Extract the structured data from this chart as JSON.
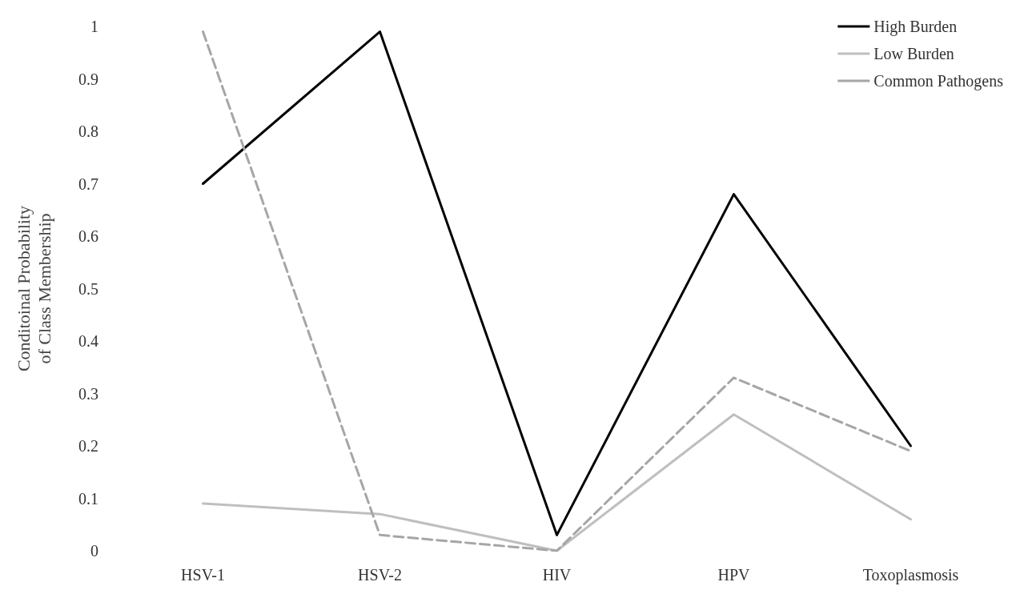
{
  "chart_data": {
    "type": "line",
    "ylabel": "Conditoinal Probability\nof Class Membership",
    "categories": [
      "HSV-1",
      "HSV-2",
      "HIV",
      "HPV",
      "Toxoplasmosis"
    ],
    "series": [
      {
        "name": "High Burden",
        "color": "#000000",
        "line_style": "solid",
        "values": [
          0.7,
          0.99,
          0.03,
          0.68,
          0.2
        ]
      },
      {
        "name": "Low Burden",
        "color": "#bfbfbf",
        "line_style": "solid",
        "values": [
          0.09,
          0.07,
          0.0,
          0.26,
          0.06
        ]
      },
      {
        "name": "Common Pathogens",
        "color": "#a6a6a6",
        "line_style": "dashed",
        "values": [
          0.99,
          0.03,
          0.0,
          0.33,
          0.19
        ]
      }
    ],
    "ylim": [
      0,
      1
    ],
    "yticks": [
      0,
      0.1,
      0.2,
      0.3,
      0.4,
      0.5,
      0.6,
      0.7,
      0.8,
      0.9,
      1
    ],
    "grid": false,
    "legend": "top right",
    "marker": "none"
  }
}
